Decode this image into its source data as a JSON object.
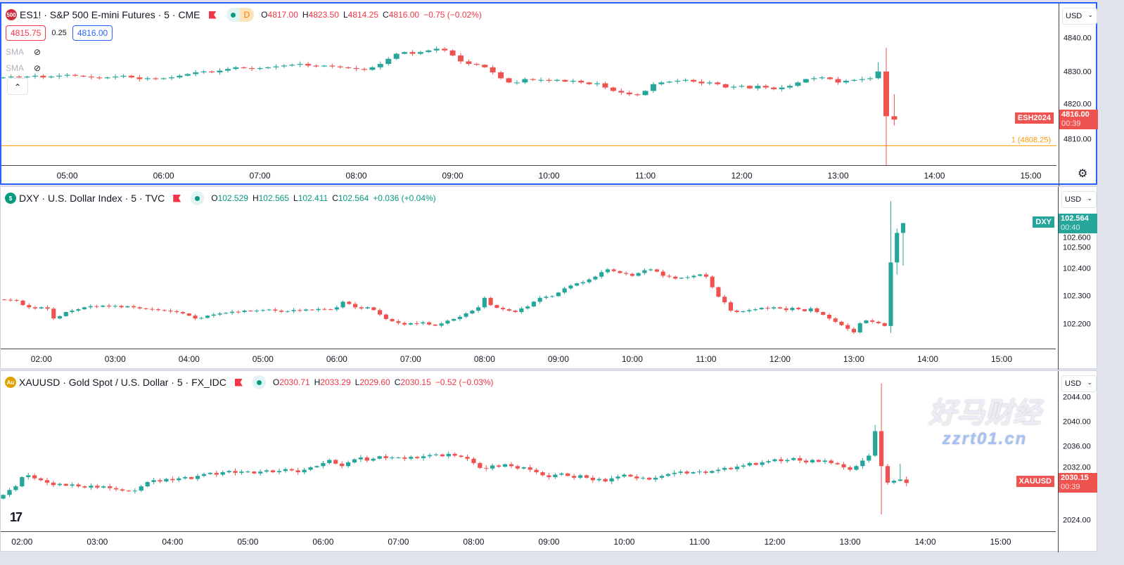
{
  "colors": {
    "up": "#26a69a",
    "down": "#ef5350",
    "accent": "#2962ff",
    "order_line": "#ff9800"
  },
  "charts": [
    {
      "symbol_icon": "500",
      "icon_color": "#cc2f3c",
      "title": "ES1! · S&P 500 E-mini Futures · 5 · CME",
      "session_badge": "D",
      "ohlc": {
        "o": "4817.00",
        "h": "4823.50",
        "l": "4814.25",
        "c": "4816.00",
        "chg": "−0.75 (−0.02%)"
      },
      "ohlc_color": "#f23645",
      "bid": "4815.75",
      "spread": "0.25",
      "ask": "4816.00",
      "indicators": [
        "SMA",
        "SMA"
      ],
      "currency": "USD",
      "x_range": [
        "04:19",
        "15:16"
      ],
      "y_range": [
        4802.5,
        4850.4
      ],
      "time_ticks": [
        "05:00",
        "06:00",
        "07:00",
        "08:00",
        "09:00",
        "10:00",
        "11:00",
        "12:00",
        "13:00",
        "14:00",
        "15:00"
      ],
      "price_ticks": [
        "4840.00",
        "4830.00",
        "4820.00",
        "4810.00"
      ],
      "start": "04:20",
      "first_open": 4828.25,
      "wick": 0.6,
      "closes": [
        4828.5,
        4828.75,
        4828.5,
        4828.75,
        4829,
        4828.5,
        4828.75,
        4829,
        4829.25,
        4829,
        4828.75,
        4828.5,
        4828.25,
        4828.5,
        4828.75,
        4829,
        4828.5,
        4828,
        4828.25,
        4828,
        4828.25,
        4828.5,
        4829,
        4829.5,
        4830,
        4830.25,
        4830,
        4830.5,
        4831,
        4831.5,
        4831.25,
        4831,
        4831.25,
        4831.5,
        4831.75,
        4832,
        4832.25,
        4832.5,
        4832,
        4831.75,
        4832,
        4831.75,
        4831.5,
        4831.25,
        4831,
        4830.75,
        4831.5,
        4832.5,
        4834,
        4835.5,
        4836,
        4835.5,
        4836,
        4836.5,
        4837,
        4836.5,
        4835,
        4833.25,
        4832.5,
        4832.25,
        4831.5,
        4830,
        4828.25,
        4827,
        4827,
        4828,
        4827.75,
        4827.75,
        4827.5,
        4827.75,
        4827.25,
        4827.5,
        4827,
        4826.5,
        4826.75,
        4825.5,
        4824.5,
        4824,
        4823.5,
        4823.25,
        4824.5,
        4826.5,
        4827,
        4827.25,
        4827.5,
        4827.75,
        4827.25,
        4826.75,
        4827,
        4826.5,
        4825.5,
        4825.75,
        4826,
        4825.25,
        4826,
        4825.5,
        4825,
        4825.5,
        4826,
        4827,
        4828,
        4828.25,
        4828.5,
        4828,
        4827,
        4827.5,
        4827.75,
        4828,
        4828.25,
        4830.25,
        4817,
        4816
      ],
      "extremes": [
        {
          "time": "13:25",
          "high": 4833
        },
        {
          "time": "13:30",
          "high": 4837.25,
          "low": 4816.5
        },
        {
          "time": "13:35",
          "high": 4823.5,
          "low": 4814.25
        }
      ],
      "last_tag": {
        "symbol": "ESH2024",
        "price": "4816.00",
        "countdown": "00:39"
      },
      "order_line": {
        "label": "1 (4808.25)",
        "price": 4808.25
      },
      "marker_time": "13:30"
    },
    {
      "symbol_icon": "$",
      "icon_color": "#089981",
      "title": "DXY · U.S. Dollar Index · 5 · TVC",
      "ohlc": {
        "o": "102.529",
        "h": "102.565",
        "l": "102.411",
        "c": "102.564",
        "chg": "+0.036 (+0.04%)"
      },
      "ohlc_color": "#089981",
      "currency": "USD",
      "x_range": [
        "01:27",
        "15:44"
      ],
      "y_range": [
        102.119,
        102.694
      ],
      "time_ticks": [
        "02:00",
        "03:00",
        "04:00",
        "05:00",
        "06:00",
        "07:00",
        "08:00",
        "09:00",
        "10:00",
        "11:00",
        "12:00",
        "13:00",
        "14:00",
        "15:00"
      ],
      "price_ticks": [
        "102.600",
        "102.500",
        "102.400",
        "102.300",
        "102.200"
      ],
      "start": "01:30",
      "first_open": 102.29,
      "wick": 0.006,
      "closes": [
        102.289,
        102.288,
        102.286,
        102.27,
        102.262,
        102.258,
        102.262,
        102.257,
        102.222,
        102.23,
        102.245,
        102.25,
        102.255,
        102.262,
        102.266,
        102.264,
        102.268,
        102.265,
        102.267,
        102.262,
        102.266,
        102.262,
        102.258,
        102.256,
        102.255,
        102.252,
        102.25,
        102.248,
        102.245,
        102.24,
        102.232,
        102.222,
        102.224,
        102.232,
        102.236,
        102.24,
        102.242,
        102.246,
        102.245,
        102.25,
        102.248,
        102.25,
        102.252,
        102.254,
        102.25,
        102.246,
        102.248,
        102.252,
        102.25,
        102.254,
        102.252,
        102.256,
        102.255,
        102.254,
        102.262,
        102.282,
        102.274,
        102.262,
        102.258,
        102.262,
        102.252,
        102.236,
        102.22,
        102.212,
        102.206,
        102.2,
        102.205,
        102.204,
        102.208,
        102.2,
        102.196,
        102.204,
        102.214,
        102.22,
        102.228,
        102.24,
        102.25,
        102.262,
        102.296,
        102.27,
        102.26,
        102.255,
        102.25,
        102.245,
        102.258,
        102.265,
        102.282,
        102.296,
        102.3,
        102.302,
        102.315,
        102.33,
        102.34,
        102.348,
        102.352,
        102.362,
        102.372,
        102.388,
        102.398,
        102.392,
        102.385,
        102.382,
        102.375,
        102.385,
        102.395,
        102.398,
        102.39,
        102.375,
        102.372,
        102.365,
        102.368,
        102.37,
        102.375,
        102.38,
        102.372,
        102.334,
        102.3,
        102.28,
        102.25,
        102.245,
        102.248,
        102.252,
        102.255,
        102.26,
        102.258,
        102.262,
        102.258,
        102.252,
        102.26,
        102.255,
        102.248,
        102.258,
        102.245,
        102.235,
        102.222,
        102.21,
        102.198,
        102.185,
        102.172,
        102.205,
        102.215,
        102.21,
        102.205,
        102.195,
        102.423,
        102.529,
        102.564
      ],
      "extremes": [
        {
          "time": "13:30",
          "high": 102.643,
          "low": 102.17
        },
        {
          "time": "13:35",
          "high": 102.545,
          "low": 102.38
        },
        {
          "time": "13:40",
          "high": 102.565,
          "low": 102.411
        }
      ],
      "last_tag": {
        "symbol": "DXY",
        "price": "102.564",
        "countdown": "00:40"
      }
    },
    {
      "symbol_icon": "Au",
      "icon_color": "#e0a100",
      "title": "XAUUSD · Gold Spot / U.S. Dollar · 5 · FX_IDC",
      "ohlc": {
        "o": "2030.71",
        "h": "2033.29",
        "l": "2029.60",
        "c": "2030.15",
        "chg": "−0.52 (−0.03%)"
      },
      "ohlc_color": "#f23645",
      "currency": "USD",
      "x_range": [
        "01:43",
        "15:44"
      ],
      "y_range": [
        2022.5,
        2048.4
      ],
      "time_ticks": [
        "02:00",
        "03:00",
        "04:00",
        "05:00",
        "06:00",
        "07:00",
        "08:00",
        "09:00",
        "10:00",
        "11:00",
        "12:00",
        "13:00",
        "14:00",
        "15:00"
      ],
      "price_ticks": [
        "2044.00",
        "2040.00",
        "2036.00",
        "2032.00",
        "2024.00"
      ],
      "start": "01:45",
      "first_open": 2027.6,
      "wick": 0.35,
      "closes": [
        2028.2,
        2029.0,
        2029.6,
        2031.1,
        2031.4,
        2030.9,
        2030.6,
        2030.2,
        2029.8,
        2030.0,
        2029.7,
        2029.9,
        2029.6,
        2029.4,
        2029.7,
        2029.4,
        2029.6,
        2029.3,
        2029.1,
        2028.9,
        2028.8,
        2028.9,
        2029.6,
        2030.3,
        2030.6,
        2030.4,
        2030.8,
        2030.6,
        2030.9,
        2031.1,
        2030.8,
        2031.3,
        2031.6,
        2031.8,
        2031.5,
        2031.9,
        2032.1,
        2031.8,
        2032.0,
        2032.0,
        2031.7,
        2032.0,
        2032.2,
        2031.9,
        2032.1,
        2032.4,
        2032.2,
        2031.9,
        2032.3,
        2032.7,
        2032.9,
        2033.4,
        2033.9,
        2033.3,
        2032.9,
        2033.5,
        2034.0,
        2034.3,
        2033.8,
        2034.1,
        2034.5,
        2034.2,
        2034.3,
        2034.3,
        2034.1,
        2034.4,
        2034.2,
        2034.5,
        2034.7,
        2034.8,
        2034.5,
        2034.9,
        2034.6,
        2034.4,
        2034.1,
        2033.4,
        2032.6,
        2032.5,
        2033.0,
        2032.8,
        2033.2,
        2032.9,
        2032.5,
        2032.7,
        2032.3,
        2031.9,
        2031.4,
        2031.1,
        2031.5,
        2031.7,
        2031.3,
        2031.0,
        2031.4,
        2031.0,
        2030.6,
        2030.8,
        2030.4,
        2030.9,
        2031.2,
        2031.5,
        2031.2,
        2030.9,
        2031.0,
        2030.7,
        2031.0,
        2031.3,
        2031.6,
        2031.8,
        2032.0,
        2031.7,
        2031.9,
        2032.0,
        2031.8,
        2032.1,
        2032.3,
        2032.6,
        2032.4,
        2032.8,
        2033.0,
        2033.4,
        2033.1,
        2033.5,
        2033.7,
        2034.0,
        2033.7,
        2033.9,
        2034.2,
        2033.8,
        2033.5,
        2033.9,
        2033.6,
        2033.8,
        2033.4,
        2033.2,
        2032.7,
        2032.3,
        2032.9,
        2033.8,
        2034.6,
        2038.6,
        2032.9,
        2030.2,
        2030.5,
        2030.71,
        2030.15
      ],
      "extremes": [
        {
          "time": "13:20",
          "high": 2039.6
        },
        {
          "time": "13:25",
          "high": 2046.4,
          "low": 2025.0
        },
        {
          "time": "13:40",
          "high": 2033.29
        },
        {
          "time": "13:45",
          "high": 2031.2,
          "low": 2029.6
        }
      ],
      "last_tag": {
        "symbol": "XAUUSD",
        "price": "2030.15",
        "countdown": "00:39"
      }
    }
  ],
  "watermark": {
    "text_cn": "好马财经",
    "text_url": "zzrt01.cn"
  },
  "logo": "TradingView"
}
